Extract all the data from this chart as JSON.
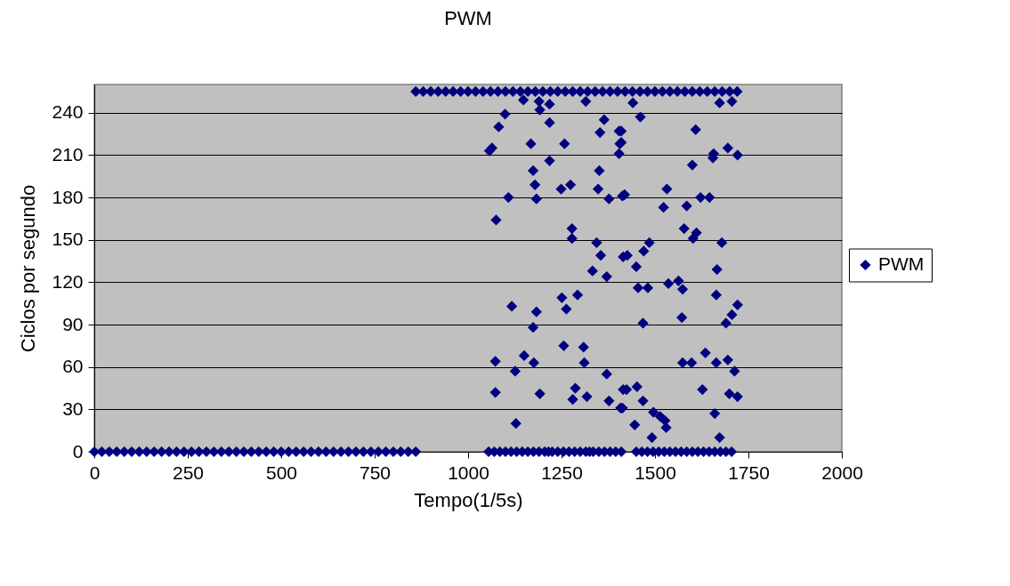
{
  "chart_data": {
    "type": "scatter",
    "title": "PWM",
    "xlabel": "Tempo(1/5s)",
    "ylabel": "Ciclos por segundo",
    "xlim": [
      0,
      2000
    ],
    "xticks": [
      0,
      250,
      500,
      750,
      1000,
      1250,
      1500,
      1750,
      2000
    ],
    "ylim": [
      0,
      260
    ],
    "yticks": [
      0,
      30,
      60,
      90,
      120,
      150,
      180,
      210,
      240
    ],
    "grid": "y",
    "legend": "right",
    "marker": "diamond",
    "series": [
      {
        "name": "PWM",
        "color": "#000080",
        "x": [
          0,
          20,
          40,
          60,
          80,
          100,
          120,
          140,
          160,
          180,
          200,
          220,
          240,
          260,
          280,
          300,
          320,
          340,
          360,
          380,
          400,
          420,
          440,
          460,
          480,
          500,
          520,
          540,
          560,
          580,
          600,
          620,
          640,
          660,
          680,
          700,
          720,
          740,
          760,
          780,
          800,
          820,
          840,
          860,
          860,
          880,
          900,
          920,
          940,
          960,
          980,
          1000,
          1020,
          1040,
          1060,
          1080,
          1100,
          1120,
          1140,
          1160,
          1180,
          1200,
          1220,
          1240,
          1260,
          1280,
          1300,
          1320,
          1340,
          1360,
          1380,
          1400,
          1420,
          1440,
          1460,
          1480,
          1500,
          1520,
          1540,
          1560,
          1580,
          1600,
          1620,
          1640,
          1660,
          1680,
          1700,
          1720,
          1055,
          1070,
          1085,
          1100,
          1115,
          1130,
          1145,
          1160,
          1175,
          1190,
          1205,
          1215,
          1225,
          1240,
          1255,
          1270,
          1285,
          1300,
          1315,
          1325,
          1335,
          1350,
          1365,
          1380,
          1395,
          1410,
          1450,
          1465,
          1480,
          1495,
          1510,
          1525,
          1540,
          1555,
          1570,
          1585,
          1600,
          1615,
          1630,
          1645,
          1660,
          1675,
          1690,
          1705,
          1099,
          1082,
          1064,
          1057,
          1168,
          1258,
          1192,
          1218,
          1148,
          1190,
          1218,
          1315,
          1218,
          1174,
          1179,
          1183,
          1108,
          1249,
          1274,
          1351,
          1348,
          1377,
          1364,
          1353,
          1404,
          1406,
          1404,
          1413,
          1075,
          1278,
          1278,
          1344,
          1355,
          1415,
          1333,
          1371,
          1117,
          1183,
          1174,
          1251,
          1263,
          1293,
          1256,
          1309,
          1311,
          1150,
          1176,
          1073,
          1126,
          1371,
          1073,
          1192,
          1287,
          1280,
          1318,
          1377,
          1408,
          1415,
          1128,
          1441,
          1461,
          1673,
          1706,
          1410,
          1410,
          1609,
          1657,
          1655,
          1695,
          1721,
          1600,
          1419,
          1532,
          1523,
          1585,
          1622,
          1646,
          1578,
          1611,
          1602,
          1679,
          1485,
          1470,
          1426,
          1450,
          1666,
          1455,
          1481,
          1536,
          1563,
          1574,
          1664,
          1721,
          1706,
          1690,
          1468,
          1572,
          1635,
          1574,
          1598,
          1664,
          1695,
          1713,
          1424,
          1452,
          1468,
          1627,
          1699,
          1721,
          1413,
          1496,
          1514,
          1527,
          1446,
          1530,
          1492,
          1660,
          1673
        ],
        "values": [
          0,
          0,
          0,
          0,
          0,
          0,
          0,
          0,
          0,
          0,
          0,
          0,
          0,
          0,
          0,
          0,
          0,
          0,
          0,
          0,
          0,
          0,
          0,
          0,
          0,
          0,
          0,
          0,
          0,
          0,
          0,
          0,
          0,
          0,
          0,
          0,
          0,
          0,
          0,
          0,
          0,
          0,
          0,
          0,
          255,
          255,
          255,
          255,
          255,
          255,
          255,
          255,
          255,
          255,
          255,
          255,
          255,
          255,
          255,
          255,
          255,
          255,
          255,
          255,
          255,
          255,
          255,
          255,
          255,
          255,
          255,
          255,
          255,
          255,
          255,
          255,
          255,
          255,
          255,
          255,
          255,
          255,
          255,
          255,
          255,
          255,
          255,
          255,
          0,
          0,
          0,
          0,
          0,
          0,
          0,
          0,
          0,
          0,
          0,
          0,
          0,
          0,
          0,
          0,
          0,
          0,
          0,
          0,
          0,
          0,
          0,
          0,
          0,
          0,
          0,
          0,
          0,
          0,
          0,
          0,
          0,
          0,
          0,
          0,
          0,
          0,
          0,
          0,
          0,
          0,
          0,
          0,
          239,
          230,
          215,
          213,
          218,
          218,
          242,
          233,
          249,
          248,
          246,
          248,
          206,
          199,
          189,
          179,
          180,
          186,
          189,
          199,
          186,
          179,
          235,
          226,
          227,
          218,
          211,
          181,
          164,
          158,
          151,
          148,
          139,
          138,
          128,
          124,
          103,
          99,
          88,
          109,
          101,
          111,
          75,
          74,
          63,
          68,
          63,
          64,
          57,
          55,
          42,
          41,
          45,
          37,
          39,
          36,
          31,
          44,
          20,
          247,
          237,
          247,
          248,
          227,
          219,
          228,
          211,
          208,
          215,
          210,
          203,
          182,
          186,
          173,
          174,
          180,
          180,
          158,
          155,
          151,
          148,
          148,
          142,
          139,
          131,
          129,
          116,
          116,
          119,
          121,
          115,
          111,
          104,
          97,
          91,
          91,
          95,
          70,
          63,
          63,
          63,
          65,
          57,
          44,
          46,
          36,
          44,
          41,
          39,
          31,
          28,
          25,
          22,
          19,
          17,
          10,
          27,
          10
        ]
      }
    ]
  }
}
